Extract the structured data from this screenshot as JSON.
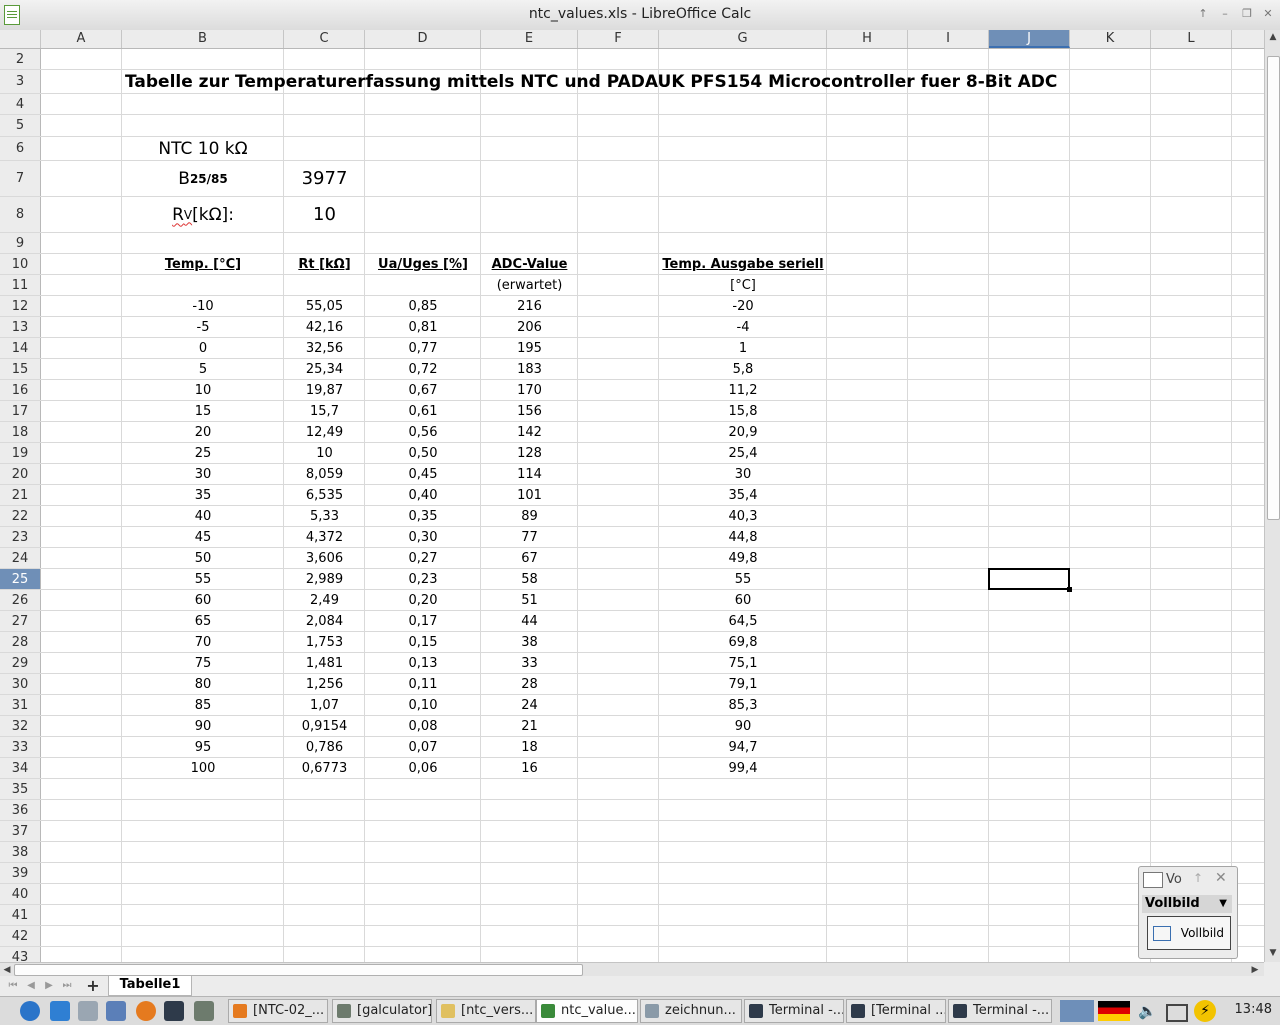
{
  "window": {
    "title": "ntc_values.xls - LibreOffice Calc"
  },
  "columns": [
    "A",
    "B",
    "C",
    "D",
    "E",
    "F",
    "G",
    "H",
    "I",
    "J",
    "K",
    "L"
  ],
  "selected_column": "J",
  "selected_row": "25",
  "sheet": {
    "title": "Tabelle zur Temperaturerfassung mittels NTC und PADAUK PFS154 Microcontroller fuer 8-Bit ADC",
    "ntc_label": "NTC 10 kΩ",
    "b_label_main": "B",
    "b_label_sub": "25/85",
    "b_value": "3977",
    "rv_label_main": "R",
    "rv_label_sub": "V",
    "rv_label_rest": " [kΩ]:",
    "rv_value": "10",
    "headers": {
      "temp": "Temp. [°C]",
      "rt": "Rt [kΩ]",
      "ua": "Ua/Uges [%]",
      "adc": "ADC-Value",
      "adc_sub": "(erwartet)",
      "out": "Temp. Ausgabe seriell",
      "out_sub": "[°C]"
    },
    "data": [
      [
        "-10",
        "55,05",
        "0,85",
        "216",
        "-20"
      ],
      [
        "-5",
        "42,16",
        "0,81",
        "206",
        "-4"
      ],
      [
        "0",
        "32,56",
        "0,77",
        "195",
        "1"
      ],
      [
        "5",
        "25,34",
        "0,72",
        "183",
        "5,8"
      ],
      [
        "10",
        "19,87",
        "0,67",
        "170",
        "11,2"
      ],
      [
        "15",
        "15,7",
        "0,61",
        "156",
        "15,8"
      ],
      [
        "20",
        "12,49",
        "0,56",
        "142",
        "20,9"
      ],
      [
        "25",
        "10",
        "0,50",
        "128",
        "25,4"
      ],
      [
        "30",
        "8,059",
        "0,45",
        "114",
        "30"
      ],
      [
        "35",
        "6,535",
        "0,40",
        "101",
        "35,4"
      ],
      [
        "40",
        "5,33",
        "0,35",
        "89",
        "40,3"
      ],
      [
        "45",
        "4,372",
        "0,30",
        "77",
        "44,8"
      ],
      [
        "50",
        "3,606",
        "0,27",
        "67",
        "49,8"
      ],
      [
        "55",
        "2,989",
        "0,23",
        "58",
        "55"
      ],
      [
        "60",
        "2,49",
        "0,20",
        "51",
        "60"
      ],
      [
        "65",
        "2,084",
        "0,17",
        "44",
        "64,5"
      ],
      [
        "70",
        "1,753",
        "0,15",
        "38",
        "69,8"
      ],
      [
        "75",
        "1,481",
        "0,13",
        "33",
        "75,1"
      ],
      [
        "80",
        "1,256",
        "0,11",
        "28",
        "79,1"
      ],
      [
        "85",
        "1,07",
        "0,10",
        "24",
        "85,3"
      ],
      [
        "90",
        "0,9154",
        "0,08",
        "21",
        "90"
      ],
      [
        "95",
        "0,786",
        "0,07",
        "18",
        "94,7"
      ],
      [
        "100",
        "0,6773",
        "0,06",
        "16",
        "99,4"
      ]
    ]
  },
  "sheet_tab": "Tabelle1",
  "float_toolbar": {
    "title": "Vo",
    "select": "Vollbild",
    "button": "Vollbild"
  },
  "taskbar": {
    "tasks": [
      "[NTC-02_...",
      "[galculator]",
      "[ntc_vers...",
      "ntc_value...",
      "zeichnun...",
      "Terminal -...",
      "[Terminal ...",
      "Terminal -..."
    ],
    "clock": "13:48"
  }
}
